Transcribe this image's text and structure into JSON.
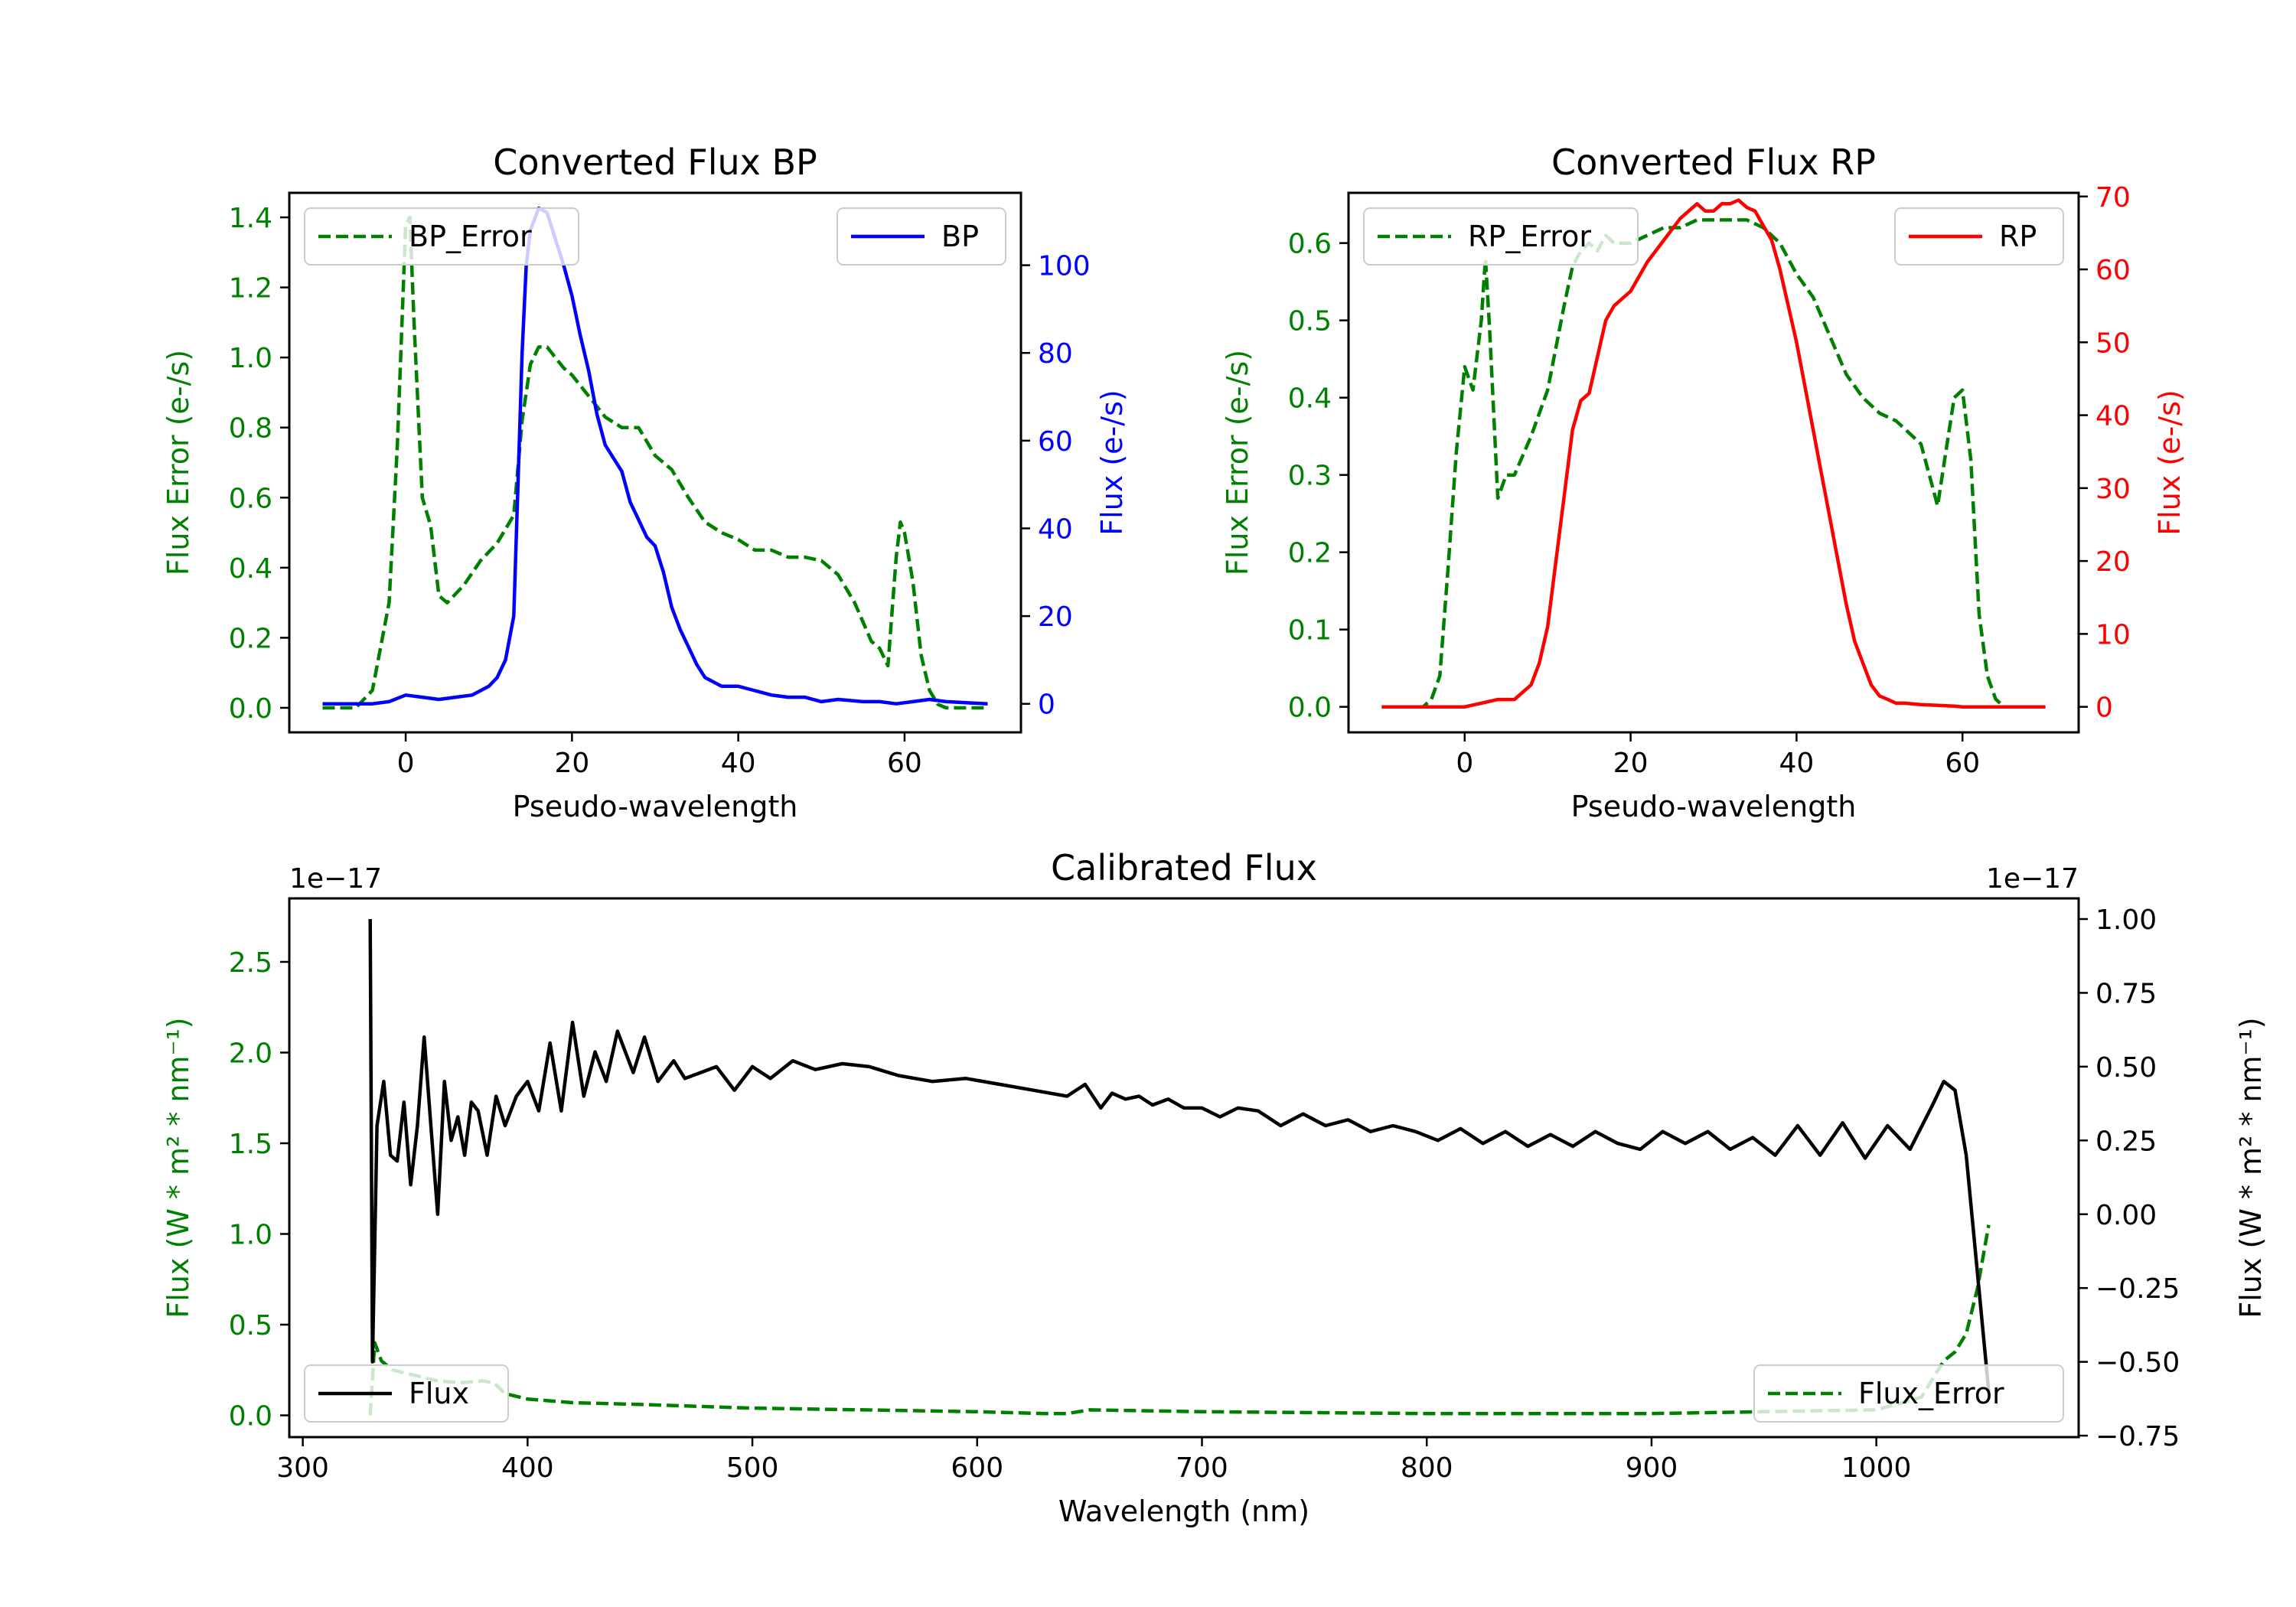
{
  "colors": {
    "error": "#008000",
    "bp": "#0000ff",
    "rp": "#ff0000",
    "calibrated": "#000000"
  },
  "chart_data": [
    {
      "id": "bp",
      "type": "line",
      "title": "Converted Flux BP",
      "xlabel": "Pseudo-wavelength",
      "ylabel_left": "Flux Error (e-/s)",
      "ylabel_right": "Flux (e-/s)",
      "xlim": [
        -14,
        74
      ],
      "ylim_left": [
        -0.07,
        1.47
      ],
      "ylim_right": [
        -6.5,
        116.5
      ],
      "xticks": [
        0,
        20,
        40,
        60
      ],
      "xtick_labels": [
        "0",
        "20",
        "40",
        "60"
      ],
      "yticks_left": [
        0.0,
        0.2,
        0.4,
        0.6,
        0.8,
        1.0,
        1.2,
        1.4
      ],
      "ytick_labels_left": [
        "0.0",
        "0.2",
        "0.4",
        "0.6",
        "0.8",
        "1.0",
        "1.2",
        "1.4"
      ],
      "yticks_right": [
        0,
        20,
        40,
        60,
        80,
        100
      ],
      "ytick_labels_right": [
        "0",
        "20",
        "40",
        "60",
        "80",
        "100"
      ],
      "legend": [
        {
          "name": "BP_Error",
          "style": "dashed",
          "position": "upper-left"
        },
        {
          "name": "BP",
          "style": "solid",
          "position": "upper-right"
        }
      ],
      "series": [
        {
          "name": "BP_Error",
          "axis": "left",
          "style": "dashed",
          "x": [
            -10,
            -6,
            -4,
            -2,
            -1,
            0,
            0.5,
            1,
            2,
            3,
            4,
            5,
            7,
            9,
            11,
            13,
            14,
            15,
            16,
            17,
            18,
            19,
            20,
            22,
            24,
            26,
            28,
            30,
            32,
            34,
            36,
            38,
            40,
            42,
            44,
            46,
            48,
            50,
            52,
            54,
            56,
            57,
            58,
            59,
            59.5,
            60,
            61,
            62,
            63,
            64,
            65,
            70
          ],
          "y": [
            0.0,
            0.0,
            0.05,
            0.3,
            0.75,
            1.38,
            1.4,
            1.1,
            0.6,
            0.52,
            0.32,
            0.3,
            0.35,
            0.42,
            0.47,
            0.55,
            0.82,
            0.98,
            1.03,
            1.03,
            1.0,
            0.97,
            0.95,
            0.89,
            0.83,
            0.8,
            0.8,
            0.72,
            0.68,
            0.6,
            0.53,
            0.5,
            0.48,
            0.45,
            0.45,
            0.43,
            0.43,
            0.42,
            0.38,
            0.3,
            0.19,
            0.17,
            0.12,
            0.43,
            0.53,
            0.5,
            0.36,
            0.15,
            0.05,
            0.01,
            0.0,
            0.0
          ]
        },
        {
          "name": "BP",
          "axis": "right",
          "style": "solid",
          "x": [
            -10,
            -4,
            -2,
            0,
            2,
            4,
            6,
            8,
            10,
            11,
            12,
            13,
            13.5,
            14,
            14.5,
            15,
            16,
            17,
            18,
            19,
            20,
            21,
            22,
            23,
            24,
            25,
            26,
            27,
            28,
            29,
            30,
            31,
            32,
            33,
            34,
            35,
            36,
            38,
            40,
            42,
            44,
            46,
            48,
            50,
            52,
            55,
            57,
            59,
            61,
            63,
            65,
            70
          ],
          "y": [
            0,
            0,
            0.5,
            2,
            1.5,
            1,
            1.5,
            2,
            4,
            6,
            10,
            20,
            50,
            80,
            100,
            108,
            113,
            112,
            106,
            100,
            93,
            84,
            76,
            66,
            59,
            56,
            53,
            46,
            42,
            38,
            36,
            30,
            22,
            17,
            13,
            9,
            6,
            4,
            4,
            3,
            2,
            1.5,
            1.5,
            0.5,
            1,
            0.5,
            0.5,
            0,
            0.5,
            1,
            0.5,
            0
          ]
        }
      ]
    },
    {
      "id": "rp",
      "type": "line",
      "title": "Converted Flux RP",
      "xlabel": "Pseudo-wavelength",
      "ylabel_left": "Flux Error (e-/s)",
      "ylabel_right": "Flux (e-/s)",
      "xlim": [
        -14,
        74
      ],
      "ylim_left": [
        -0.033,
        0.665
      ],
      "ylim_right": [
        -3.5,
        70.5
      ],
      "xticks": [
        0,
        20,
        40,
        60
      ],
      "xtick_labels": [
        "0",
        "20",
        "40",
        "60"
      ],
      "yticks_left": [
        0.0,
        0.1,
        0.2,
        0.3,
        0.4,
        0.5,
        0.6
      ],
      "ytick_labels_left": [
        "0.0",
        "0.1",
        "0.2",
        "0.3",
        "0.4",
        "0.5",
        "0.6"
      ],
      "yticks_right": [
        0,
        10,
        20,
        30,
        40,
        50,
        60,
        70
      ],
      "ytick_labels_right": [
        "0",
        "10",
        "20",
        "30",
        "40",
        "50",
        "60",
        "70"
      ],
      "legend": [
        {
          "name": "RP_Error",
          "style": "dashed",
          "position": "upper-left"
        },
        {
          "name": "RP",
          "style": "solid",
          "position": "upper-right"
        }
      ],
      "series": [
        {
          "name": "RP_Error",
          "axis": "left",
          "style": "dashed",
          "x": [
            -10,
            -5,
            -4,
            -3,
            -2,
            -1,
            0,
            1,
            2,
            2.5,
            3,
            4,
            5,
            6,
            8,
            10,
            12,
            13,
            14,
            15,
            16,
            17,
            18,
            19,
            20,
            22,
            24,
            26,
            28,
            30,
            32,
            34,
            36,
            38,
            40,
            42,
            44,
            46,
            48,
            50,
            52,
            54,
            55,
            56,
            57,
            58,
            59,
            60,
            61,
            62,
            63,
            64,
            65,
            70
          ],
          "y": [
            0.0,
            0.0,
            0.01,
            0.04,
            0.18,
            0.33,
            0.44,
            0.41,
            0.5,
            0.58,
            0.49,
            0.27,
            0.3,
            0.3,
            0.35,
            0.41,
            0.52,
            0.57,
            0.59,
            0.6,
            0.59,
            0.61,
            0.6,
            0.6,
            0.6,
            0.61,
            0.62,
            0.62,
            0.63,
            0.63,
            0.63,
            0.63,
            0.62,
            0.6,
            0.56,
            0.53,
            0.48,
            0.43,
            0.4,
            0.38,
            0.37,
            0.35,
            0.34,
            0.3,
            0.26,
            0.33,
            0.4,
            0.41,
            0.32,
            0.12,
            0.04,
            0.01,
            0.0,
            0.0
          ]
        },
        {
          "name": "RP",
          "axis": "right",
          "style": "solid",
          "x": [
            -10,
            -4,
            -2,
            0,
            2,
            4,
            6,
            8,
            9,
            10,
            11,
            12,
            13,
            14,
            15,
            16,
            17,
            18,
            19,
            20,
            22,
            24,
            26,
            28,
            29,
            30,
            31,
            32,
            33,
            34,
            35,
            36,
            37,
            38,
            39,
            40,
            41,
            42,
            43,
            44,
            45,
            46,
            47,
            48,
            49,
            50,
            51,
            52,
            53,
            55,
            57,
            59,
            60,
            62,
            65,
            70
          ],
          "y": [
            0,
            0,
            0,
            0,
            0.5,
            1,
            1,
            3,
            6,
            11,
            20,
            29,
            38,
            42,
            43,
            48,
            53,
            55,
            56,
            57,
            61,
            64,
            67,
            69,
            68,
            68,
            69,
            69,
            69.5,
            68.5,
            68,
            66,
            64,
            60,
            55,
            50,
            44,
            38,
            32,
            26,
            20,
            14,
            9,
            6,
            3,
            1.5,
            1,
            0.5,
            0.5,
            0.3,
            0.2,
            0.1,
            0,
            0,
            0,
            0
          ]
        }
      ]
    },
    {
      "id": "calibrated",
      "type": "line",
      "title": "Calibrated Flux",
      "xlabel": "Wavelength (nm)",
      "ylabel_left": "Flux (W * m² * nm⁻¹)",
      "ylabel_right": "Flux (W * m² * nm⁻¹)",
      "offset_left": "1e−17",
      "offset_right": "1e−17",
      "xlim": [
        294,
        1090
      ],
      "ylim_left": [
        -0.12,
        2.85
      ],
      "ylim_right": [
        -0.755,
        1.07
      ],
      "xticks": [
        300,
        400,
        500,
        600,
        700,
        800,
        900,
        1000
      ],
      "xtick_labels": [
        "300",
        "400",
        "500",
        "600",
        "700",
        "800",
        "900",
        "1000"
      ],
      "yticks_left": [
        0.0,
        0.5,
        1.0,
        1.5,
        2.0,
        2.5
      ],
      "ytick_labels_left": [
        "0.0",
        "0.5",
        "1.0",
        "1.5",
        "2.0",
        "2.5"
      ],
      "yticks_right": [
        -0.75,
        -0.5,
        -0.25,
        0.0,
        0.25,
        0.5,
        0.75,
        1.0
      ],
      "ytick_labels_right": [
        "−0.75",
        "−0.50",
        "−0.25",
        "0.00",
        "0.25",
        "0.50",
        "0.75",
        "1.00"
      ],
      "legend": [
        {
          "name": "Flux",
          "style": "solid",
          "position": "lower-left"
        },
        {
          "name": "Flux_Error",
          "style": "dashed",
          "position": "lower-right"
        }
      ],
      "series": [
        {
          "name": "Flux_Error",
          "axis": "left",
          "style": "dashed",
          "x": [
            330,
            332,
            335,
            340,
            350,
            360,
            370,
            380,
            385,
            390,
            400,
            420,
            450,
            500,
            550,
            600,
            630,
            640,
            650,
            700,
            800,
            900,
            950,
            1000,
            1020,
            1030,
            1035,
            1040,
            1045,
            1050
          ],
          "y": [
            0.0,
            0.4,
            0.3,
            0.25,
            0.22,
            0.19,
            0.18,
            0.19,
            0.18,
            0.12,
            0.09,
            0.07,
            0.06,
            0.04,
            0.03,
            0.02,
            0.01,
            0.01,
            0.03,
            0.02,
            0.01,
            0.01,
            0.02,
            0.03,
            0.1,
            0.3,
            0.35,
            0.45,
            0.7,
            1.05
          ]
        },
        {
          "name": "Flux",
          "axis": "right",
          "style": "solid",
          "x": [
            330,
            331,
            333,
            336,
            339,
            342,
            345,
            348,
            351,
            354,
            357,
            360,
            363,
            366,
            369,
            372,
            375,
            378,
            382,
            386,
            390,
            395,
            400,
            405,
            410,
            415,
            420,
            425,
            430,
            435,
            440,
            447,
            452,
            458,
            465,
            470,
            477,
            484,
            492,
            500,
            508,
            518,
            528,
            540,
            552,
            565,
            580,
            595,
            610,
            625,
            640,
            648,
            655,
            660,
            666,
            672,
            678,
            685,
            692,
            700,
            708,
            716,
            725,
            735,
            745,
            755,
            765,
            775,
            785,
            795,
            805,
            815,
            825,
            835,
            845,
            855,
            865,
            875,
            885,
            895,
            905,
            915,
            925,
            935,
            945,
            955,
            965,
            975,
            985,
            995,
            1005,
            1015,
            1025,
            1030,
            1035,
            1040,
            1045,
            1050
          ],
          "y": [
            1.0,
            -0.5,
            0.3,
            0.45,
            0.2,
            0.18,
            0.38,
            0.1,
            0.3,
            0.6,
            0.3,
            0.0,
            0.45,
            0.25,
            0.33,
            0.2,
            0.38,
            0.35,
            0.2,
            0.4,
            0.3,
            0.4,
            0.45,
            0.35,
            0.58,
            0.35,
            0.65,
            0.4,
            0.55,
            0.45,
            0.62,
            0.48,
            0.6,
            0.45,
            0.52,
            0.46,
            0.48,
            0.5,
            0.42,
            0.5,
            0.46,
            0.52,
            0.49,
            0.51,
            0.5,
            0.47,
            0.45,
            0.46,
            0.44,
            0.42,
            0.4,
            0.44,
            0.36,
            0.41,
            0.39,
            0.4,
            0.37,
            0.39,
            0.36,
            0.36,
            0.33,
            0.36,
            0.35,
            0.3,
            0.34,
            0.3,
            0.32,
            0.28,
            0.3,
            0.28,
            0.25,
            0.29,
            0.24,
            0.28,
            0.23,
            0.27,
            0.23,
            0.28,
            0.24,
            0.22,
            0.28,
            0.24,
            0.28,
            0.22,
            0.26,
            0.2,
            0.3,
            0.2,
            0.31,
            0.19,
            0.3,
            0.22,
            0.37,
            0.45,
            0.42,
            0.2,
            -0.2,
            -0.6
          ]
        }
      ]
    }
  ]
}
